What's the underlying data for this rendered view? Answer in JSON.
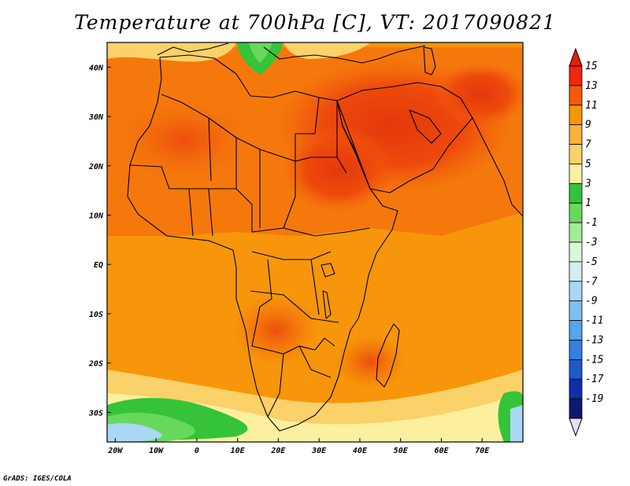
{
  "title": "Temperature at 700hPa [C], VT: 2017090821",
  "credit": "GrADS: IGES/COLA",
  "map": {
    "lon_range": [
      -22,
      80
    ],
    "lat_range": [
      -36,
      45
    ],
    "lon_ticks": [
      {
        "value": -20,
        "label": "20W"
      },
      {
        "value": -10,
        "label": "10W"
      },
      {
        "value": 0,
        "label": "0"
      },
      {
        "value": 10,
        "label": "10E"
      },
      {
        "value": 20,
        "label": "20E"
      },
      {
        "value": 30,
        "label": "30E"
      },
      {
        "value": 40,
        "label": "40E"
      },
      {
        "value": 50,
        "label": "50E"
      },
      {
        "value": 60,
        "label": "60E"
      },
      {
        "value": 70,
        "label": "70E"
      }
    ],
    "lat_ticks": [
      {
        "value": 40,
        "label": "40N"
      },
      {
        "value": 30,
        "label": "30N"
      },
      {
        "value": 20,
        "label": "20N"
      },
      {
        "value": 10,
        "label": "10N"
      },
      {
        "value": 0,
        "label": "EQ"
      },
      {
        "value": -10,
        "label": "10S"
      },
      {
        "value": -20,
        "label": "20S"
      },
      {
        "value": -30,
        "label": "30S"
      }
    ],
    "variable": "Temperature at 700hPa",
    "units": "C"
  },
  "colorbar": {
    "labels": [
      "15",
      "13",
      "11",
      "9",
      "7",
      "5",
      "3",
      "1",
      "-1",
      "-3",
      "-5",
      "-7",
      "-9",
      "-11",
      "-13",
      "-15",
      "-17",
      "-19"
    ],
    "colors": [
      "#f0260f",
      "#f55a0a",
      "#f7960a",
      "#f9b23a",
      "#fbd169",
      "#fdf0a0",
      "#35c33a",
      "#68d85d",
      "#a2eb96",
      "#d8f8d8",
      "#d3edf7",
      "#aad7f5",
      "#80c0f0",
      "#56a5ea",
      "#3580de",
      "#2058cc",
      "#0c30a6",
      "#0a1a70"
    ],
    "over_color": "#e41e0a",
    "under_color": "#e6e0fa"
  }
}
